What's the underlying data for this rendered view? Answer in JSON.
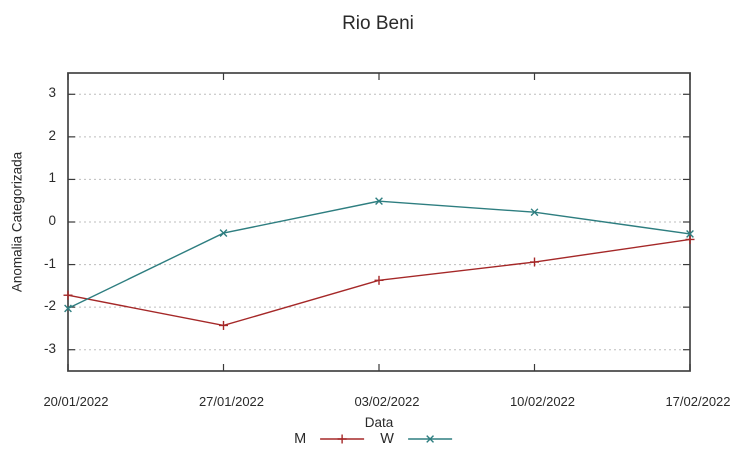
{
  "chart_data": {
    "type": "line",
    "title": "Rio Beni",
    "xlabel": "Data",
    "ylabel": "Anomalia Categorizada",
    "categories": [
      "20/01/2022",
      "27/01/2022",
      "03/02/2022",
      "10/02/2022",
      "17/02/2022"
    ],
    "series": [
      {
        "name": "M",
        "color": "#a52828",
        "marker": "plus",
        "values": [
          -1.72,
          -2.43,
          -1.37,
          -0.94,
          -0.41
        ]
      },
      {
        "name": "W",
        "color": "#2e7e80",
        "marker": "cross",
        "values": [
          -2.03,
          -0.26,
          0.49,
          0.23,
          -0.28
        ]
      }
    ],
    "yticks": [
      -3,
      -2,
      -1,
      0,
      1,
      2,
      3
    ],
    "ylim": [
      -3.5,
      3.5
    ],
    "grid": true,
    "legend_position": "bottom-center",
    "colors": {
      "border": "#4f4f4f",
      "grid": "#bdbdbd",
      "text": "#2a2a2a"
    }
  }
}
